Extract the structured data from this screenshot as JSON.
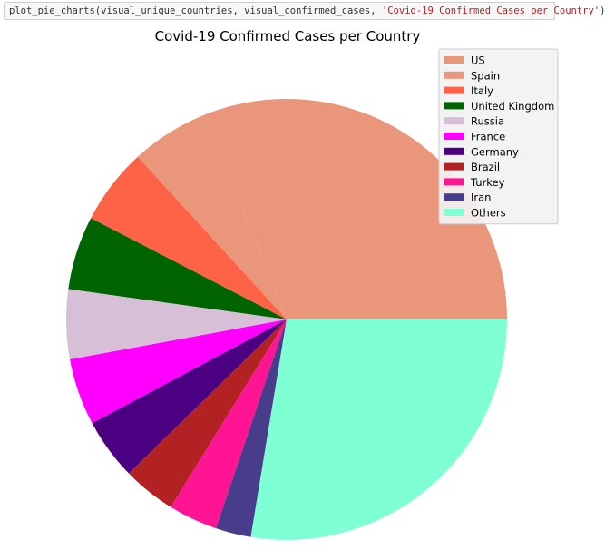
{
  "code": {
    "prefix": "plot_pie_charts(visual_unique_countries, visual_confirmed_cases, ",
    "string_arg": "'Covid-19 Confirmed Cases per Country'",
    "suffix": ")"
  },
  "chart_data": {
    "type": "pie",
    "title": "Covid-19 Confirmed Cases per Country",
    "legend_position": "top-right",
    "start_angle_deg": 0,
    "direction": "counterclockwise",
    "slices": [
      {
        "label": "US",
        "value": 31.0,
        "color": "#e9967a"
      },
      {
        "label": "Spain",
        "value": 5.8,
        "color": "#e9967a"
      },
      {
        "label": "Italy",
        "value": 5.6,
        "color": "#ff6347"
      },
      {
        "label": "United Kingdom",
        "value": 5.4,
        "color": "#006400"
      },
      {
        "label": "Russia",
        "value": 5.1,
        "color": "#d8bfd8"
      },
      {
        "label": "France",
        "value": 4.9,
        "color": "#ff00ff"
      },
      {
        "label": "Germany",
        "value": 4.5,
        "color": "#4b0082"
      },
      {
        "label": "Brazil",
        "value": 3.9,
        "color": "#b22222"
      },
      {
        "label": "Turkey",
        "value": 3.6,
        "color": "#ff1493"
      },
      {
        "label": "Iran",
        "value": 2.6,
        "color": "#483d8b"
      },
      {
        "label": "Others",
        "value": 27.6,
        "color": "#7fffd4"
      }
    ]
  }
}
